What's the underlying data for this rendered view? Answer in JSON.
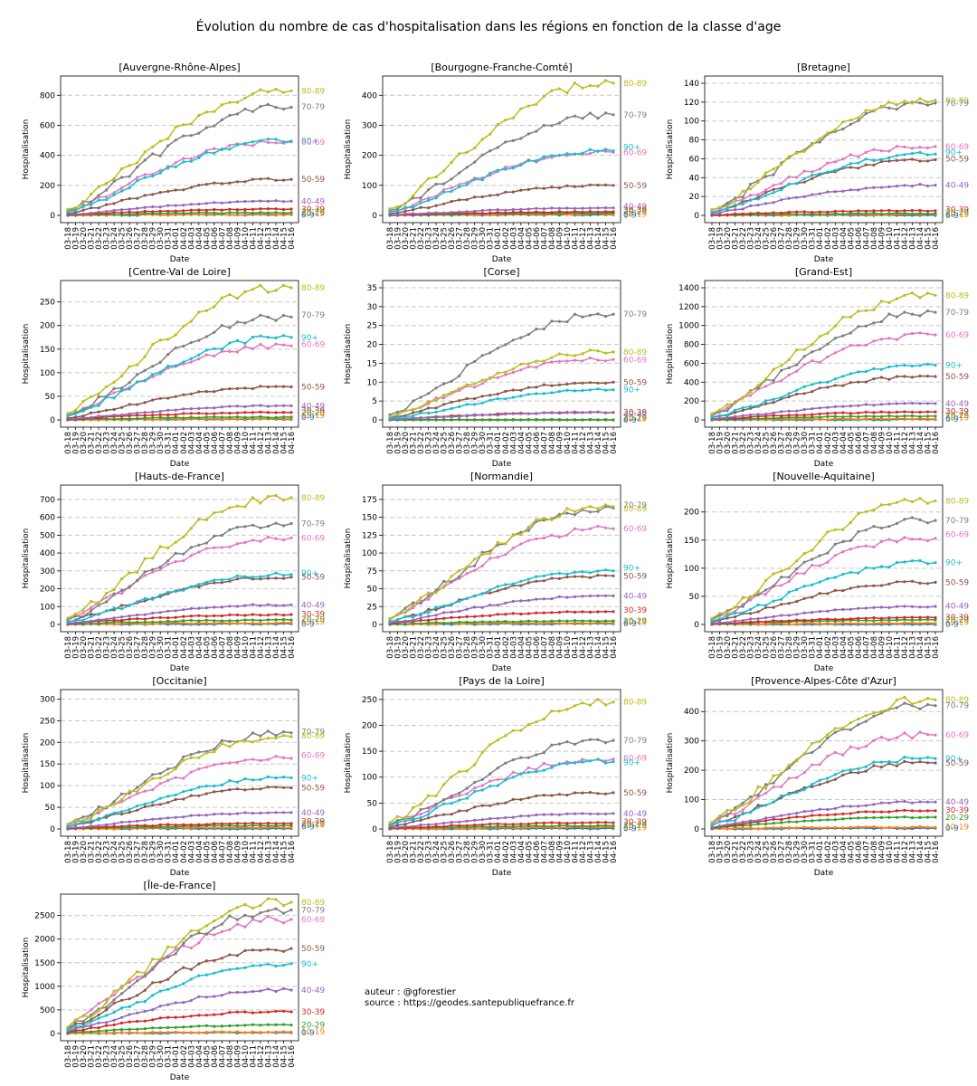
{
  "title": "Évolution du nombre de cas d'hospitalisation dans les régions en fonction de la classe d'age",
  "credits": {
    "author": "auteur : @gforestier",
    "source": "source : https://geodes.santepubliquefrance.fr"
  },
  "chart_data": {
    "type": "line",
    "xlabel": "Date",
    "ylabel": "Hospitalisation",
    "dates": [
      "03-18",
      "03-19",
      "03-20",
      "03-21",
      "03-22",
      "03-23",
      "03-24",
      "03-25",
      "03-26",
      "03-27",
      "03-28",
      "03-29",
      "03-30",
      "03-31",
      "04-01",
      "04-02",
      "04-03",
      "04-04",
      "04-05",
      "04-06",
      "04-07",
      "04-08",
      "04-09",
      "04-10",
      "04-11",
      "04-12",
      "04-13",
      "04-14",
      "04-15",
      "04-16"
    ],
    "age_classes": [
      {
        "name": "0-9",
        "color": "#1f77b4"
      },
      {
        "name": "10-19",
        "color": "#ff7f0e"
      },
      {
        "name": "20-29",
        "color": "#2ca02c"
      },
      {
        "name": "30-39",
        "color": "#d62728"
      },
      {
        "name": "40-49",
        "color": "#9467bd"
      },
      {
        "name": "50-59",
        "color": "#8c564b"
      },
      {
        "name": "60-69",
        "color": "#e377c2"
      },
      {
        "name": "70-79",
        "color": "#7f7f7f"
      },
      {
        "name": "80-89",
        "color": "#bcbd22"
      },
      {
        "name": "90+",
        "color": "#17becf"
      }
    ],
    "regions": [
      {
        "name": "[Auvergne-Rhône-Alpes]",
        "ylim": [
          0,
          880
        ],
        "yticks": [
          0,
          200,
          400,
          600,
          800
        ],
        "final": [
          4,
          6,
          18,
          42,
          95,
          240,
          490,
          720,
          830,
          495
        ],
        "labels": [
          [
            "80-89",
            830
          ],
          [
            "70-79",
            722
          ],
          [
            "90+",
            497
          ],
          [
            "60-69",
            489
          ],
          [
            "50-59",
            240
          ],
          [
            "40-49",
            93
          ],
          [
            "30-39",
            41
          ],
          [
            "20-29",
            22
          ],
          [
            "10-19",
            12
          ],
          [
            "0-9",
            4
          ]
        ]
      },
      {
        "name": "[Bourgogne-Franche-Comté]",
        "ylim": [
          0,
          440
        ],
        "yticks": [
          0,
          100,
          200,
          300,
          400
        ],
        "final": [
          2,
          4,
          8,
          12,
          25,
          100,
          210,
          335,
          440,
          215
        ],
        "labels": [
          [
            "80-89",
            440
          ],
          [
            "70-79",
            335
          ],
          [
            "90+",
            228
          ],
          [
            "60-69",
            210
          ],
          [
            "50-59",
            100
          ],
          [
            "40-49",
            30
          ],
          [
            "30-39",
            18
          ],
          [
            "20-29",
            12
          ],
          [
            "10-19",
            5
          ],
          [
            "0-9",
            2
          ]
        ]
      },
      {
        "name": "[Bretagne]",
        "ylim": [
          0,
          140
        ],
        "yticks": [
          0,
          20,
          40,
          60,
          80,
          100,
          120,
          140
        ],
        "final": [
          0,
          1,
          2,
          5,
          32,
          59,
          73,
          119,
          122,
          65
        ],
        "labels": [
          [
            "80-89",
            122
          ],
          [
            "70-79",
            119
          ],
          [
            "90+",
            67
          ],
          [
            "60-69",
            73
          ],
          [
            "50-59",
            60
          ],
          [
            "40-49",
            32
          ],
          [
            "30-39",
            6
          ],
          [
            "20-29",
            3
          ],
          [
            "10-19",
            1
          ],
          [
            "0-9",
            0
          ]
        ]
      },
      {
        "name": "[Centre-Val de Loire]",
        "ylim": [
          0,
          280
        ],
        "yticks": [
          0,
          50,
          100,
          150,
          200,
          250
        ],
        "final": [
          1,
          2,
          6,
          16,
          30,
          70,
          157,
          218,
          280,
          175
        ],
        "labels": [
          [
            "80-89",
            280
          ],
          [
            "70-79",
            222
          ],
          [
            "90+",
            175
          ],
          [
            "60-69",
            160
          ],
          [
            "50-59",
            70
          ],
          [
            "40-49",
            30
          ],
          [
            "30-39",
            20
          ],
          [
            "20-29",
            15
          ],
          [
            "10-19",
            10
          ],
          [
            "0-9",
            6
          ]
        ]
      },
      {
        "name": "[Corse]",
        "ylim": [
          0,
          35
        ],
        "yticks": [
          0,
          5,
          10,
          15,
          20,
          25,
          30,
          35
        ],
        "final": [
          0,
          0,
          0,
          2,
          2,
          10,
          16,
          28,
          18,
          8
        ],
        "labels": [
          [
            "70-79",
            28
          ],
          [
            "80-89",
            18
          ],
          [
            "60-69",
            16
          ],
          [
            "50-59",
            10
          ],
          [
            "90+",
            8
          ],
          [
            "30-39",
            2
          ],
          [
            "40-49",
            1.6
          ],
          [
            "20-29",
            0.6
          ],
          [
            "10-19",
            0.3
          ],
          [
            "0-9",
            0
          ]
        ]
      },
      {
        "name": "[Grand-Est]",
        "ylim": [
          0,
          1400
        ],
        "yticks": [
          0,
          200,
          400,
          600,
          800,
          1000,
          1200,
          1400
        ],
        "final": [
          5,
          10,
          40,
          85,
          175,
          460,
          900,
          1140,
          1320,
          580
        ],
        "labels": [
          [
            "80-89",
            1320
          ],
          [
            "70-79",
            1140
          ],
          [
            "60-69",
            900
          ],
          [
            "90+",
            580
          ],
          [
            "50-59",
            460
          ],
          [
            "40-49",
            175
          ],
          [
            "30-39",
            90
          ],
          [
            "20-29",
            50
          ],
          [
            "10-19",
            25
          ],
          [
            "0-9",
            10
          ]
        ]
      },
      {
        "name": "[Hauts-de-France]",
        "ylim": [
          0,
          740
        ],
        "yticks": [
          0,
          100,
          200,
          300,
          400,
          500,
          600,
          700
        ],
        "final": [
          3,
          8,
          25,
          55,
          110,
          265,
          485,
          565,
          710,
          280
        ],
        "labels": [
          [
            "80-89",
            710
          ],
          [
            "70-79",
            565
          ],
          [
            "60-69",
            485
          ],
          [
            "90+",
            290
          ],
          [
            "50-59",
            265
          ],
          [
            "40-49",
            110
          ],
          [
            "30-39",
            58
          ],
          [
            "20-29",
            30
          ],
          [
            "10-19",
            15
          ],
          [
            "0-9",
            3
          ]
        ]
      },
      {
        "name": "[Normandie]",
        "ylim": [
          0,
          185
        ],
        "yticks": [
          0,
          25,
          50,
          75,
          100,
          125,
          150,
          175
        ],
        "final": [
          1,
          2,
          5,
          18,
          40,
          68,
          134,
          163,
          165,
          75
        ],
        "labels": [
          [
            "70-79",
            167
          ],
          [
            "80-89",
            162
          ],
          [
            "60-69",
            134
          ],
          [
            "90+",
            79
          ],
          [
            "50-59",
            68
          ],
          [
            "40-49",
            40
          ],
          [
            "30-39",
            20
          ],
          [
            "20-29",
            5
          ],
          [
            "10-19",
            3
          ],
          [
            "0-9",
            1
          ]
        ]
      },
      {
        "name": "[Nouvelle-Aquitaine]",
        "ylim": [
          0,
          235
        ],
        "yticks": [
          0,
          50,
          100,
          150,
          200
        ],
        "final": [
          0,
          2,
          8,
          12,
          32,
          75,
          153,
          185,
          220,
          110
        ],
        "labels": [
          [
            "80-89",
            220
          ],
          [
            "70-79",
            185
          ],
          [
            "60-69",
            160
          ],
          [
            "90+",
            110
          ],
          [
            "50-59",
            75
          ],
          [
            "40-49",
            33
          ],
          [
            "30-39",
            13
          ],
          [
            "20-29",
            8
          ],
          [
            "10-19",
            4
          ],
          [
            "0-9",
            0
          ]
        ]
      },
      {
        "name": "[Occitanie]",
        "ylim": [
          0,
          305
        ],
        "yticks": [
          0,
          50,
          100,
          150,
          200,
          250,
          300
        ],
        "final": [
          1,
          3,
          8,
          13,
          38,
          95,
          163,
          222,
          213,
          118
        ],
        "labels": [
          [
            "70-79",
            225
          ],
          [
            "80-89",
            215
          ],
          [
            "60-69",
            170
          ],
          [
            "90+",
            118
          ],
          [
            "50-59",
            95
          ],
          [
            "40-49",
            38
          ],
          [
            "30-39",
            18
          ],
          [
            "20-29",
            13
          ],
          [
            "10-19",
            9
          ],
          [
            "0-9",
            5
          ]
        ]
      },
      {
        "name": "[Pays de la Loire]",
        "ylim": [
          0,
          255
        ],
        "yticks": [
          0,
          50,
          100,
          150,
          200,
          250
        ],
        "final": [
          1,
          3,
          6,
          12,
          30,
          70,
          135,
          171,
          245,
          130
        ],
        "labels": [
          [
            "80-89",
            245
          ],
          [
            "70-79",
            171
          ],
          [
            "60-69",
            137
          ],
          [
            "90+",
            128
          ],
          [
            "50-59",
            70
          ],
          [
            "40-49",
            30
          ],
          [
            "30-39",
            14
          ],
          [
            "20-29",
            7
          ],
          [
            "10-19",
            3
          ],
          [
            "0-9",
            1
          ]
        ]
      },
      {
        "name": "[Provence-Alpes-Côte d'Azur]",
        "ylim": [
          0,
          450
        ],
        "yticks": [
          0,
          100,
          200,
          300,
          400
        ],
        "final": [
          3,
          6,
          40,
          62,
          92,
          225,
          320,
          420,
          440,
          240
        ],
        "labels": [
          [
            "80-89",
            440
          ],
          [
            "70-79",
            420
          ],
          [
            "60-69",
            320
          ],
          [
            "90+",
            240
          ],
          [
            "50-59",
            225
          ],
          [
            "40-49",
            92
          ],
          [
            "30-39",
            64
          ],
          [
            "20-29",
            40
          ],
          [
            "10-19",
            8
          ],
          [
            "0-9",
            3
          ]
        ]
      },
      {
        "name": "[Île-de-France]",
        "ylim": [
          0,
          2800
        ],
        "yticks": [
          0,
          500,
          1000,
          1500,
          2000,
          2500
        ],
        "final": [
          18,
          30,
          180,
          460,
          920,
          1800,
          2420,
          2620,
          2780,
          1480
        ],
        "labels": [
          [
            "80-89",
            2780
          ],
          [
            "70-79",
            2620
          ],
          [
            "60-69",
            2420
          ],
          [
            "50-59",
            1800
          ],
          [
            "90+",
            1480
          ],
          [
            "40-49",
            920
          ],
          [
            "30-39",
            460
          ],
          [
            "20-29",
            180
          ],
          [
            "10-19",
            40
          ],
          [
            "0-9",
            18
          ]
        ]
      }
    ]
  }
}
